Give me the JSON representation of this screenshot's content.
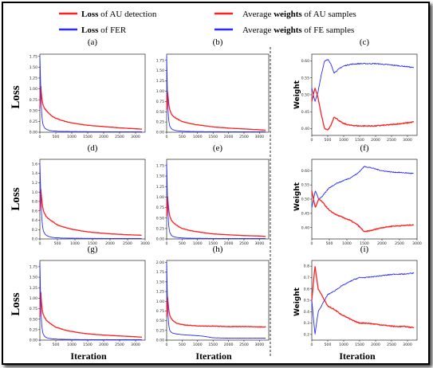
{
  "legend": {
    "items": [
      {
        "bold": "Loss",
        "rest": " of AU detection",
        "color": "#ff2020"
      },
      {
        "bold": "Loss",
        "rest": " of FER",
        "color": "#2a2aff"
      },
      {
        "pre": "Average ",
        "bold": "weights",
        "rest": " of AU samples",
        "color": "#ff2020"
      },
      {
        "pre": "Average ",
        "bold": "weights",
        "rest": " of FE samples",
        "color": "#2a2aff"
      }
    ]
  },
  "labels": {
    "loss": "Loss",
    "weight": "Weight",
    "iteration": "Iteration"
  },
  "colors": {
    "au": "#ff2020",
    "fe": "#2a2aff"
  },
  "chart_data": [
    {
      "id": "a",
      "panel_label": "(a)",
      "type": "line",
      "xlim": [
        0,
        3300
      ],
      "ylim": [
        0,
        1.8
      ],
      "xticks": [
        0,
        500,
        1000,
        1500,
        2000,
        2500,
        3000
      ],
      "yticks": [
        0,
        0.25,
        0.5,
        0.75,
        1.0,
        1.25,
        1.5,
        1.75
      ],
      "ydec": 2,
      "series": [
        {
          "color": "#ff2020",
          "x": [
            0,
            20,
            40,
            60,
            80,
            100,
            150,
            200,
            300,
            400,
            500,
            700,
            900,
            1200,
            1500,
            2000,
            2500,
            3000,
            3200
          ],
          "y": [
            0.55,
            1.15,
            0.95,
            0.8,
            0.7,
            0.62,
            0.55,
            0.5,
            0.42,
            0.36,
            0.32,
            0.27,
            0.23,
            0.19,
            0.16,
            0.13,
            0.1,
            0.08,
            0.07
          ]
        },
        {
          "color": "#2a2aff",
          "x": [
            0,
            20,
            40,
            60,
            80,
            100,
            150,
            200,
            300,
            400,
            600,
            1000,
            2000,
            3200
          ],
          "y": [
            1.75,
            1.2,
            0.7,
            0.4,
            0.25,
            0.17,
            0.1,
            0.07,
            0.04,
            0.03,
            0.02,
            0.015,
            0.01,
            0.01
          ]
        }
      ]
    },
    {
      "id": "b",
      "panel_label": "(b)",
      "type": "line",
      "xlim": [
        0,
        3300
      ],
      "ylim": [
        0,
        1.9
      ],
      "xticks": [
        0,
        500,
        1000,
        1500,
        2000,
        2500,
        3000
      ],
      "yticks": [
        0,
        0.25,
        0.5,
        0.75,
        1.0,
        1.25,
        1.5,
        1.75
      ],
      "ydec": 2,
      "series": [
        {
          "color": "#ff2020",
          "x": [
            0,
            20,
            40,
            60,
            80,
            100,
            150,
            200,
            300,
            400,
            500,
            700,
            900,
            1200,
            1500,
            2000,
            2500,
            3000,
            3200
          ],
          "y": [
            0.55,
            1.05,
            0.9,
            0.75,
            0.62,
            0.55,
            0.45,
            0.4,
            0.34,
            0.3,
            0.26,
            0.22,
            0.19,
            0.16,
            0.13,
            0.1,
            0.08,
            0.06,
            0.05
          ]
        },
        {
          "color": "#2a2aff",
          "x": [
            0,
            20,
            40,
            60,
            80,
            100,
            150,
            200,
            300,
            400,
            600,
            1000,
            2000,
            3200
          ],
          "y": [
            1.85,
            1.1,
            0.6,
            0.35,
            0.22,
            0.15,
            0.09,
            0.06,
            0.04,
            0.03,
            0.02,
            0.015,
            0.01,
            0.01
          ]
        }
      ]
    },
    {
      "id": "c",
      "panel_label": "(c)",
      "type": "line",
      "xlim": [
        0,
        3300
      ],
      "ylim": [
        0.38,
        0.62
      ],
      "xticks": [
        0,
        500,
        1000,
        1500,
        2000,
        2500,
        3000
      ],
      "yticks": [
        0.4,
        0.45,
        0.5,
        0.55,
        0.6
      ],
      "ydec": 2,
      "series": [
        {
          "color": "#2a2aff",
          "x": [
            0,
            100,
            200,
            300,
            400,
            500,
            600,
            700,
            800,
            900,
            1000,
            1200,
            1500,
            2000,
            2500,
            3000,
            3200
          ],
          "y": [
            0.52,
            0.48,
            0.51,
            0.56,
            0.6,
            0.605,
            0.59,
            0.565,
            0.572,
            0.58,
            0.585,
            0.59,
            0.592,
            0.592,
            0.588,
            0.583,
            0.58
          ]
        },
        {
          "color": "#ff2020",
          "x": [
            0,
            100,
            200,
            300,
            400,
            500,
            600,
            700,
            800,
            900,
            1000,
            1200,
            1500,
            2000,
            2500,
            3000,
            3200
          ],
          "y": [
            0.48,
            0.52,
            0.49,
            0.44,
            0.4,
            0.395,
            0.41,
            0.435,
            0.428,
            0.42,
            0.415,
            0.41,
            0.408,
            0.408,
            0.412,
            0.417,
            0.42
          ]
        }
      ]
    },
    {
      "id": "d",
      "panel_label": "(d)",
      "type": "line",
      "xlim": [
        0,
        3000
      ],
      "ylim": [
        0,
        1.7
      ],
      "xticks": [
        0,
        500,
        1000,
        1500,
        2000,
        2500,
        3000
      ],
      "yticks": [
        0,
        0.2,
        0.4,
        0.6,
        0.8,
        1.0,
        1.2,
        1.4,
        1.6
      ],
      "ydec": 1,
      "series": [
        {
          "color": "#ff2020",
          "x": [
            0,
            20,
            40,
            60,
            80,
            100,
            150,
            200,
            300,
            400,
            500,
            700,
            900,
            1200,
            1500,
            2000,
            2500,
            2900
          ],
          "y": [
            0.6,
            1.1,
            0.95,
            0.8,
            0.68,
            0.6,
            0.52,
            0.46,
            0.4,
            0.35,
            0.3,
            0.25,
            0.21,
            0.17,
            0.14,
            0.11,
            0.09,
            0.08
          ]
        },
        {
          "color": "#2a2aff",
          "x": [
            0,
            20,
            40,
            60,
            80,
            100,
            150,
            200,
            300,
            400,
            600,
            1000,
            2000,
            2900
          ],
          "y": [
            1.6,
            1.1,
            0.65,
            0.4,
            0.25,
            0.17,
            0.1,
            0.07,
            0.04,
            0.03,
            0.02,
            0.015,
            0.01,
            0.01
          ]
        }
      ]
    },
    {
      "id": "e",
      "panel_label": "(e)",
      "type": "line",
      "xlim": [
        0,
        3300
      ],
      "ylim": [
        0,
        1.9
      ],
      "xticks": [
        0,
        500,
        1000,
        1500,
        2000,
        2500,
        3000
      ],
      "yticks": [
        0,
        0.25,
        0.5,
        0.75,
        1.0,
        1.25,
        1.5,
        1.75
      ],
      "ydec": 2,
      "series": [
        {
          "color": "#ff2020",
          "x": [
            0,
            20,
            40,
            60,
            80,
            100,
            150,
            200,
            300,
            400,
            500,
            700,
            900,
            1200,
            1500,
            2000,
            2500,
            3000,
            3200
          ],
          "y": [
            0.55,
            1.1,
            0.9,
            0.75,
            0.62,
            0.55,
            0.45,
            0.4,
            0.34,
            0.29,
            0.25,
            0.21,
            0.18,
            0.15,
            0.12,
            0.1,
            0.08,
            0.07,
            0.06
          ]
        },
        {
          "color": "#2a2aff",
          "x": [
            0,
            20,
            40,
            60,
            80,
            100,
            150,
            200,
            300,
            400,
            600,
            1000,
            2000,
            3200
          ],
          "y": [
            1.8,
            1.15,
            0.65,
            0.38,
            0.24,
            0.16,
            0.09,
            0.06,
            0.04,
            0.03,
            0.02,
            0.015,
            0.01,
            0.01
          ]
        }
      ]
    },
    {
      "id": "f",
      "panel_label": "(f)",
      "type": "line",
      "xlim": [
        0,
        3000
      ],
      "ylim": [
        0.36,
        0.64
      ],
      "xticks": [
        0,
        500,
        1000,
        1500,
        2000,
        2500,
        3000
      ],
      "yticks": [
        0.4,
        0.45,
        0.5,
        0.55,
        0.6
      ],
      "ydec": 2,
      "series": [
        {
          "color": "#2a2aff",
          "x": [
            0,
            100,
            200,
            300,
            500,
            700,
            900,
            1100,
            1300,
            1500,
            1700,
            2000,
            2300,
            2600,
            2900
          ],
          "y": [
            0.47,
            0.53,
            0.5,
            0.51,
            0.54,
            0.555,
            0.565,
            0.575,
            0.59,
            0.615,
            0.61,
            0.6,
            0.595,
            0.593,
            0.59
          ]
        },
        {
          "color": "#ff2020",
          "x": [
            0,
            100,
            200,
            300,
            500,
            700,
            900,
            1100,
            1300,
            1500,
            1700,
            2000,
            2300,
            2600,
            2900
          ],
          "y": [
            0.53,
            0.47,
            0.5,
            0.49,
            0.46,
            0.445,
            0.435,
            0.425,
            0.41,
            0.385,
            0.39,
            0.4,
            0.405,
            0.407,
            0.41
          ]
        }
      ]
    },
    {
      "id": "g",
      "panel_label": "(g)",
      "type": "line",
      "xlim": [
        0,
        3300
      ],
      "ylim": [
        0,
        1.9
      ],
      "xticks": [
        0,
        500,
        1000,
        1500,
        2000,
        2500,
        3000
      ],
      "yticks": [
        0,
        0.25,
        0.5,
        0.75,
        1.0,
        1.25,
        1.5,
        1.75
      ],
      "ydec": 2,
      "series": [
        {
          "color": "#ff2020",
          "x": [
            0,
            20,
            40,
            60,
            80,
            100,
            150,
            200,
            300,
            400,
            500,
            700,
            900,
            1200,
            1500,
            2000,
            2500,
            3000,
            3200
          ],
          "y": [
            0.55,
            1.25,
            1.0,
            0.82,
            0.7,
            0.62,
            0.54,
            0.48,
            0.41,
            0.36,
            0.31,
            0.26,
            0.22,
            0.18,
            0.15,
            0.12,
            0.1,
            0.08,
            0.07
          ]
        },
        {
          "color": "#2a2aff",
          "x": [
            0,
            20,
            40,
            60,
            80,
            100,
            150,
            200,
            300,
            400,
            600,
            1000,
            2000,
            3200
          ],
          "y": [
            1.85,
            1.1,
            0.6,
            0.35,
            0.22,
            0.15,
            0.09,
            0.06,
            0.04,
            0.03,
            0.02,
            0.015,
            0.01,
            0.01
          ]
        }
      ]
    },
    {
      "id": "h",
      "panel_label": "(h)",
      "type": "line",
      "xlim": [
        0,
        3300
      ],
      "ylim": [
        0,
        2.05
      ],
      "xticks": [
        0,
        500,
        1000,
        1500,
        2000,
        2500,
        3000
      ],
      "yticks": [
        0,
        0.25,
        0.5,
        0.75,
        1.0,
        1.25,
        1.5,
        1.75,
        2.0
      ],
      "ydec": 2,
      "series": [
        {
          "color": "#ff2020",
          "x": [
            0,
            20,
            40,
            60,
            80,
            100,
            150,
            200,
            300,
            400,
            500,
            700,
            900,
            1200,
            1500,
            2000,
            2500,
            3000,
            3200
          ],
          "y": [
            0.6,
            1.2,
            1.0,
            0.85,
            0.72,
            0.64,
            0.55,
            0.5,
            0.45,
            0.42,
            0.4,
            0.38,
            0.37,
            0.36,
            0.36,
            0.35,
            0.35,
            0.34,
            0.34
          ]
        },
        {
          "color": "#2a2aff",
          "x": [
            0,
            20,
            40,
            60,
            80,
            100,
            150,
            200,
            300,
            400,
            500,
            700,
            900,
            1200,
            1500,
            2000,
            2500,
            3000,
            3200
          ],
          "y": [
            2.0,
            1.2,
            0.7,
            0.45,
            0.32,
            0.25,
            0.2,
            0.18,
            0.16,
            0.15,
            0.14,
            0.13,
            0.12,
            0.1,
            0.06,
            0.05,
            0.05,
            0.05,
            0.05
          ]
        }
      ]
    },
    {
      "id": "i",
      "panel_label": "(i)",
      "type": "line",
      "xlim": [
        0,
        3300
      ],
      "ylim": [
        0.15,
        0.85
      ],
      "xticks": [
        0,
        500,
        1000,
        1500,
        2000,
        2500,
        3000
      ],
      "yticks": [
        0.2,
        0.3,
        0.4,
        0.5,
        0.6,
        0.7,
        0.8
      ],
      "ydec": 1,
      "series": [
        {
          "color": "#2a2aff",
          "x": [
            0,
            100,
            150,
            200,
            300,
            400,
            500,
            700,
            900,
            1100,
            1300,
            1500,
            1700,
            2000,
            2300,
            2600,
            2900,
            3200
          ],
          "y": [
            0.5,
            0.2,
            0.3,
            0.4,
            0.45,
            0.5,
            0.55,
            0.58,
            0.62,
            0.65,
            0.68,
            0.7,
            0.7,
            0.71,
            0.72,
            0.73,
            0.73,
            0.74
          ]
        },
        {
          "color": "#ff2020",
          "x": [
            0,
            100,
            150,
            200,
            300,
            400,
            500,
            700,
            900,
            1100,
            1300,
            1500,
            1700,
            2000,
            2300,
            2600,
            2900,
            3200
          ],
          "y": [
            0.5,
            0.8,
            0.7,
            0.6,
            0.55,
            0.5,
            0.45,
            0.42,
            0.38,
            0.35,
            0.32,
            0.3,
            0.3,
            0.29,
            0.28,
            0.27,
            0.27,
            0.26
          ]
        }
      ]
    }
  ]
}
